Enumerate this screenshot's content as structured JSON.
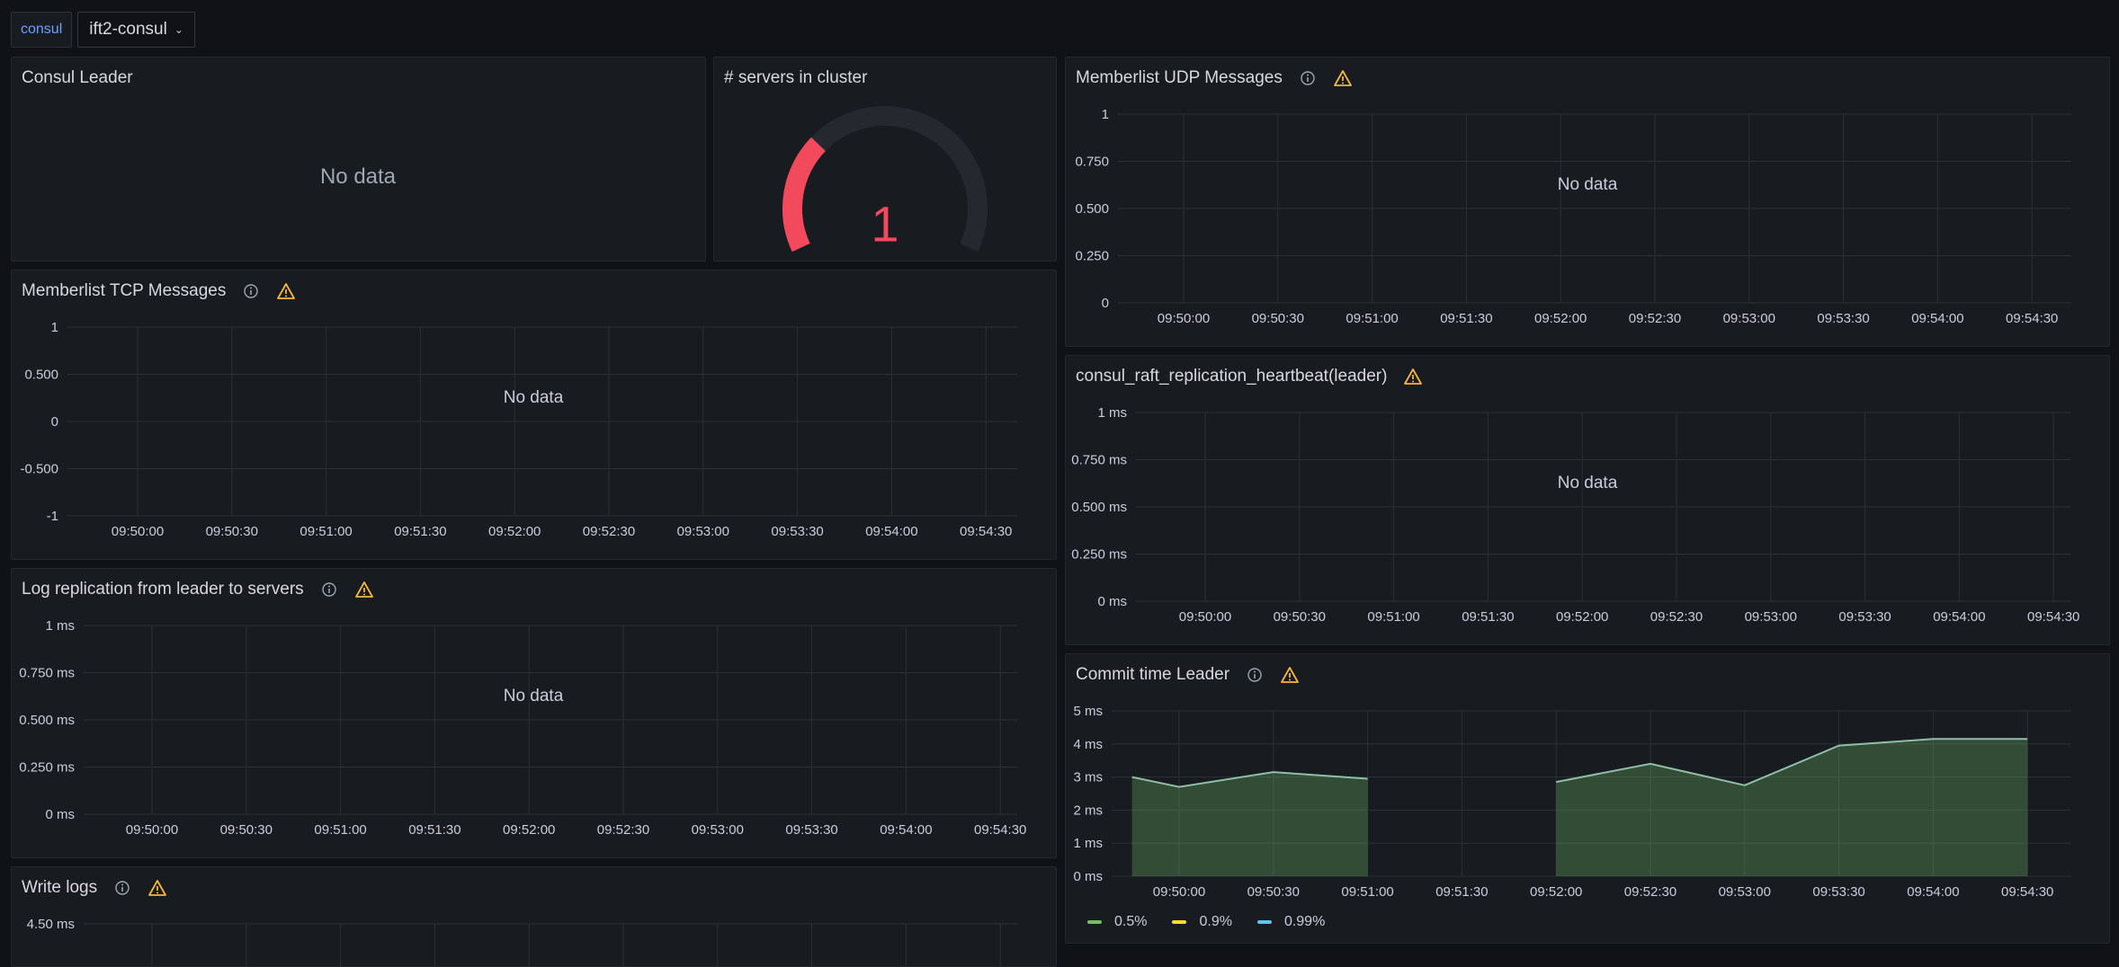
{
  "variables": {
    "label": "consul",
    "value": "ift2-consul"
  },
  "times": [
    "09:50:00",
    "09:50:30",
    "09:51:00",
    "09:51:30",
    "09:52:00",
    "09:52:30",
    "09:53:00",
    "09:53:30",
    "09:54:00",
    "09:54:30"
  ],
  "panels": {
    "consul_leader": {
      "title": "Consul Leader",
      "no_data": "No data"
    },
    "servers": {
      "title": "# servers in cluster",
      "value": "1",
      "gauge_fraction": 0.3,
      "color": "#f2495c"
    },
    "tcp": {
      "title": "Memberlist TCP Messages",
      "no_data": "No data"
    },
    "udp": {
      "title": "Memberlist UDP Messages",
      "no_data": "No data"
    },
    "heartbeat": {
      "title": "consul_raft_replication_heartbeat(leader)",
      "no_data": "No data"
    },
    "logrep": {
      "title": "Log replication from leader to servers",
      "no_data": "No data"
    },
    "commit": {
      "title": "Commit time Leader"
    },
    "writelogs": {
      "title": "Write logs",
      "top_tick": "4.50 ms"
    }
  },
  "chart_data": [
    {
      "panel": "Memberlist TCP Messages",
      "type": "line",
      "y_ticks": [
        "1",
        "0.500",
        "0",
        "-0.500",
        "-1"
      ],
      "ylim": [
        -1,
        1
      ],
      "x": [
        "09:50:00",
        "09:50:30",
        "09:51:00",
        "09:51:30",
        "09:52:00",
        "09:52:30",
        "09:53:00",
        "09:53:30",
        "09:54:00",
        "09:54:30"
      ],
      "series": [],
      "grid": true
    },
    {
      "panel": "Memberlist UDP Messages",
      "type": "line",
      "y_ticks": [
        "1",
        "0.750",
        "0.500",
        "0.250",
        "0"
      ],
      "ylim": [
        0,
        1
      ],
      "x": [
        "09:50:00",
        "09:50:30",
        "09:51:00",
        "09:51:30",
        "09:52:00",
        "09:52:30",
        "09:53:00",
        "09:53:30",
        "09:54:00",
        "09:54:30"
      ],
      "series": [],
      "grid": true
    },
    {
      "panel": "consul_raft_replication_heartbeat(leader)",
      "type": "line",
      "y_ticks": [
        "1 ms",
        "0.750 ms",
        "0.500 ms",
        "0.250 ms",
        "0 ms"
      ],
      "ylim": [
        0,
        1
      ],
      "x": [
        "09:50:00",
        "09:50:30",
        "09:51:00",
        "09:51:30",
        "09:52:00",
        "09:52:30",
        "09:53:00",
        "09:53:30",
        "09:54:00",
        "09:54:30"
      ],
      "series": [],
      "grid": true
    },
    {
      "panel": "Log replication from leader to servers",
      "type": "line",
      "y_ticks": [
        "1 ms",
        "0.750 ms",
        "0.500 ms",
        "0.250 ms",
        "0 ms"
      ],
      "ylim": [
        0,
        1
      ],
      "x": [
        "09:50:00",
        "09:50:30",
        "09:51:00",
        "09:51:30",
        "09:52:00",
        "09:52:30",
        "09:53:00",
        "09:53:30",
        "09:54:00",
        "09:54:30"
      ],
      "series": [],
      "grid": true
    },
    {
      "panel": "Commit time Leader",
      "type": "area",
      "y_ticks": [
        "5 ms",
        "4 ms",
        "3 ms",
        "2 ms",
        "1 ms",
        "0 ms"
      ],
      "ylim": [
        0,
        5
      ],
      "x": [
        "09:50:00",
        "09:50:30",
        "09:51:00",
        "09:51:30",
        "09:52:00",
        "09:52:30",
        "09:53:00",
        "09:53:30",
        "09:54:00",
        "09:54:30"
      ],
      "series": [
        {
          "name": "0.5%",
          "color": "#73bf69",
          "points": [
            [
              "09:49:45",
              3.0
            ],
            [
              "09:50:00",
              2.7
            ],
            [
              "09:50:30",
              3.15
            ],
            [
              "09:51:00",
              2.95
            ],
            [
              "09:52:00",
              2.85
            ],
            [
              "09:52:30",
              3.4
            ],
            [
              "09:53:00",
              2.75
            ],
            [
              "09:53:30",
              3.95
            ],
            [
              "09:54:00",
              4.15
            ],
            [
              "09:54:30",
              4.15
            ]
          ],
          "gap_after": "09:51:00"
        },
        {
          "name": "0.9%",
          "color": "#fade2a",
          "points": []
        },
        {
          "name": "0.99%",
          "color": "#5ec4e8",
          "points": []
        }
      ],
      "legend_position": "bottom-left",
      "grid": true
    },
    {
      "panel": "Write logs",
      "type": "line",
      "y_ticks": [
        "4.50 ms"
      ],
      "series": [],
      "grid": true
    }
  ]
}
